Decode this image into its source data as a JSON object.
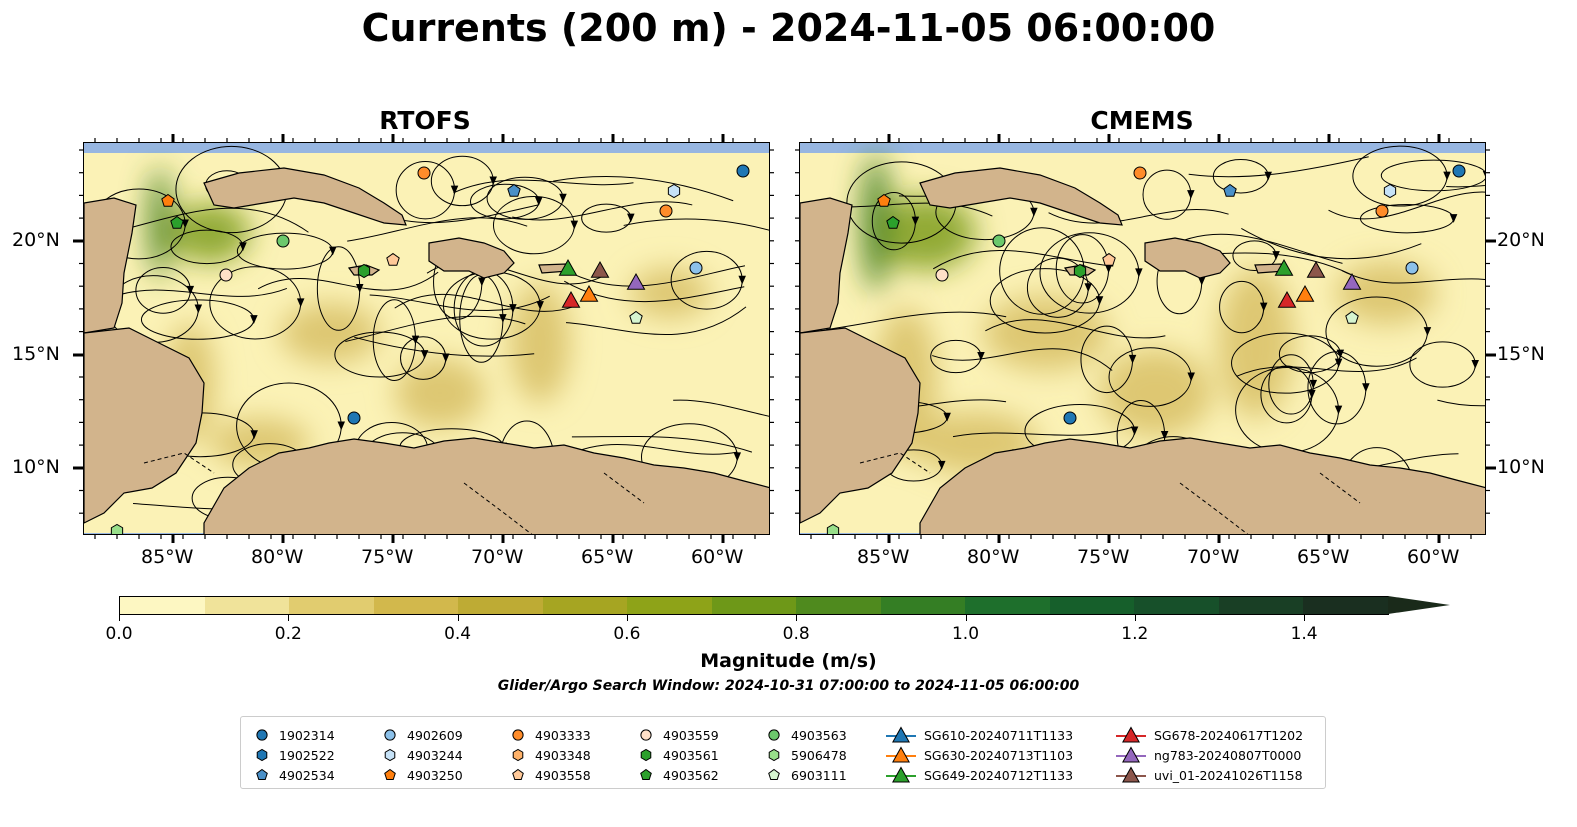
{
  "title": "Currents (200 m) - 2024-11-05 06:00:00",
  "panels": [
    {
      "title": "RTOFS"
    },
    {
      "title": "CMEMS"
    }
  ],
  "lat_labels": [
    "20°N",
    "15°N",
    "10°N"
  ],
  "lon_labels": [
    "85°W",
    "80°W",
    "75°W",
    "70°W",
    "65°W",
    "60°W"
  ],
  "colorbar": {
    "label": "Magnitude (m/s)",
    "ticks": [
      "0.0",
      "0.2",
      "0.4",
      "0.6",
      "0.8",
      "1.0",
      "1.2",
      "1.4"
    ],
    "colors": [
      "#fdf7c2",
      "#f0e39a",
      "#e1cc6f",
      "#d2b84c",
      "#beab34",
      "#a6a522",
      "#8ea318",
      "#6e9818",
      "#4f8a1e",
      "#347e24",
      "#1e6f2c",
      "#165f2b",
      "#17502a",
      "#193f25",
      "#1a2f20"
    ]
  },
  "search_window": "Glider/Argo Search Window: 2024-10-31 07:00:00 to 2024-11-05 06:00:00",
  "legend": {
    "columns": [
      [
        {
          "label": "1902314",
          "shape": "circle",
          "color": "#1f77b4"
        },
        {
          "label": "1902522",
          "shape": "hexagon",
          "color": "#1f77b4"
        },
        {
          "label": "4902534",
          "shape": "pentagon",
          "color": "#4a90c8"
        }
      ],
      [
        {
          "label": "4902609",
          "shape": "circle",
          "color": "#8cc1ea"
        },
        {
          "label": "4903244",
          "shape": "hexagon",
          "color": "#c6e2f7"
        },
        {
          "label": "4903250",
          "shape": "pentagon",
          "color": "#ff7f0e"
        }
      ],
      [
        {
          "label": "4903333",
          "shape": "circle",
          "color": "#ff8c2a"
        },
        {
          "label": "4903348",
          "shape": "hexagon",
          "color": "#ffb26a"
        },
        {
          "label": "4903558",
          "shape": "pentagon",
          "color": "#ffc999"
        }
      ],
      [
        {
          "label": "4903559",
          "shape": "circle",
          "color": "#ffe0c8"
        },
        {
          "label": "4903561",
          "shape": "hexagon",
          "color": "#2ca02c"
        },
        {
          "label": "4903562",
          "shape": "pentagon",
          "color": "#2ca02c"
        }
      ],
      [
        {
          "label": "4903563",
          "shape": "circle",
          "color": "#6cc86c"
        },
        {
          "label": "5906478",
          "shape": "hexagon",
          "color": "#98df8a"
        },
        {
          "label": "6903111",
          "shape": "pentagon",
          "color": "#d6f5d0"
        }
      ],
      [
        {
          "label": "SG610-20240711T1133",
          "shape": "triangle-line",
          "color": "#1f77b4"
        },
        {
          "label": "SG630-20240713T1103",
          "shape": "triangle-line",
          "color": "#ff7f0e"
        },
        {
          "label": "SG649-20240712T1133",
          "shape": "triangle-line",
          "color": "#2ca02c"
        }
      ],
      [
        {
          "label": "SG678-20240617T1202",
          "shape": "triangle-line",
          "color": "#d62728"
        },
        {
          "label": "ng783-20240807T0000",
          "shape": "triangle-line",
          "color": "#9467bd"
        },
        {
          "label": "uvi_01-20241026T1158",
          "shape": "triangle-line",
          "color": "#8c564b"
        }
      ]
    ]
  },
  "map_colors": {
    "ocean": "#97b6e1",
    "land": "#d2b48c",
    "water_low": "#fbf2b6",
    "water_mid": "#d8c066",
    "water_high": "#7f9e1c",
    "water_max": "#3f7f22"
  }
}
